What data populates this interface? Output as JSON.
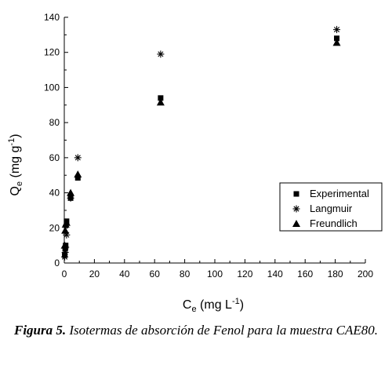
{
  "chart_data": {
    "type": "scatter",
    "xlabel": {
      "base": "C",
      "sub": "e",
      "unit_open": " (mg L",
      "sup": "-1",
      "unit_close": ")"
    },
    "ylabel": {
      "base": "Q",
      "sub": "e",
      "unit_open": " (mg g",
      "sup": "-1",
      "unit_close": ")"
    },
    "xlim": [
      0,
      200
    ],
    "ylim": [
      0,
      140
    ],
    "xticks": [
      0,
      20,
      40,
      60,
      80,
      100,
      120,
      140,
      160,
      180,
      200
    ],
    "yticks": [
      0,
      20,
      40,
      60,
      80,
      100,
      120,
      140
    ],
    "grid": false,
    "legend_position": "right-middle",
    "series": [
      {
        "name": "Experimental",
        "marker": "square",
        "x": [
          0.3,
          0.6,
          0.9,
          1.5,
          4.2,
          9.0,
          64.0,
          181.0
        ],
        "y": [
          4.5,
          8.0,
          10.0,
          23.8,
          37.0,
          48.5,
          94.0,
          128.0
        ]
      },
      {
        "name": "Langmuir",
        "marker": "asterisk",
        "x": [
          0.3,
          0.6,
          0.9,
          1.5,
          4.2,
          9.0,
          64.0,
          181.0
        ],
        "y": [
          3.5,
          6.0,
          9.0,
          16.0,
          37.0,
          60.0,
          119.0,
          133.0
        ]
      },
      {
        "name": "Freundlich",
        "marker": "triangle",
        "x": [
          0.3,
          0.6,
          0.9,
          1.5,
          4.2,
          9.0,
          64.0,
          181.0
        ],
        "y": [
          10.0,
          18.5,
          22.0,
          23.0,
          40.0,
          50.5,
          91.5,
          125.5
        ]
      }
    ]
  },
  "caption": {
    "figure_label": "Figura 5.",
    "text": " Isotermas de absorción de Fenol para la muestra CAE80."
  }
}
